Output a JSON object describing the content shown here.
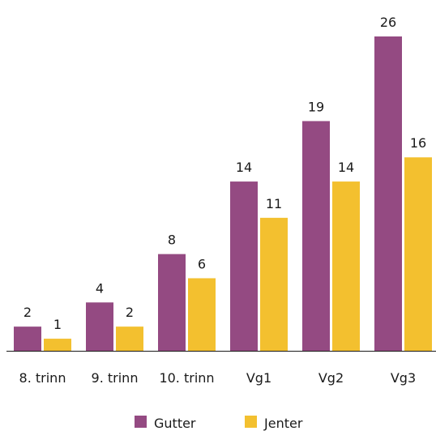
{
  "chart_data": {
    "type": "bar",
    "categories": [
      "8. trinn",
      "9. trinn",
      "10. trinn",
      "Vg1",
      "Vg2",
      "Vg3"
    ],
    "series": [
      {
        "name": "Gutter",
        "values": [
          2,
          4,
          8,
          14,
          19,
          26
        ],
        "color": "#944a82"
      },
      {
        "name": "Jenter",
        "values": [
          1,
          2,
          6,
          11,
          14,
          16
        ],
        "color": "#f3c02f"
      }
    ],
    "ylim": [
      0,
      26
    ],
    "grid": false,
    "legend": "bottom",
    "data_labels": true
  }
}
